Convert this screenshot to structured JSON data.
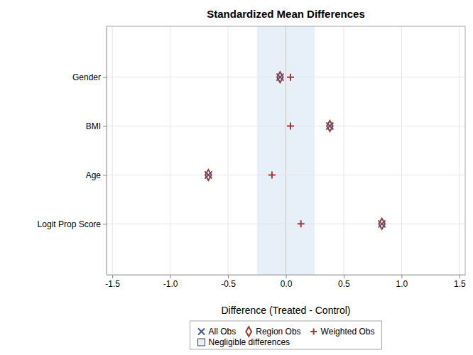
{
  "chart_data": {
    "type": "dot",
    "title": "Standardized Mean Differences",
    "xlabel": "Difference (Treated - Control)",
    "categories": [
      "Gender",
      "BMI",
      "Age",
      "Logit Prop Score"
    ],
    "series": [
      {
        "name": "All Obs",
        "color": "#445694",
        "marker": "x",
        "values": [
          -0.05,
          0.38,
          -0.67,
          0.83
        ]
      },
      {
        "name": "Region Obs",
        "color": "#A23A2E",
        "marker": "diamond",
        "values": [
          -0.05,
          0.38,
          -0.67,
          0.83
        ]
      },
      {
        "name": "Weighted Obs",
        "color": "#A23A2E",
        "marker": "plus",
        "values": [
          0.04,
          0.04,
          -0.12,
          0.13
        ]
      }
    ],
    "reference_band": {
      "name": "Negligible differences",
      "range": [
        -0.25,
        0.25
      ],
      "color": "#E7EFF9"
    },
    "xlim": [
      -1.55,
      1.55
    ],
    "xticks": [
      -1.5,
      {
        "value": -1,
        "label": "-1.0"
      },
      -0.5,
      {
        "value": 0,
        "label": "0.0"
      },
      0.5,
      {
        "value": 1,
        "label": "1.0"
      },
      1.5
    ],
    "grid": true,
    "legend": "bottom"
  }
}
